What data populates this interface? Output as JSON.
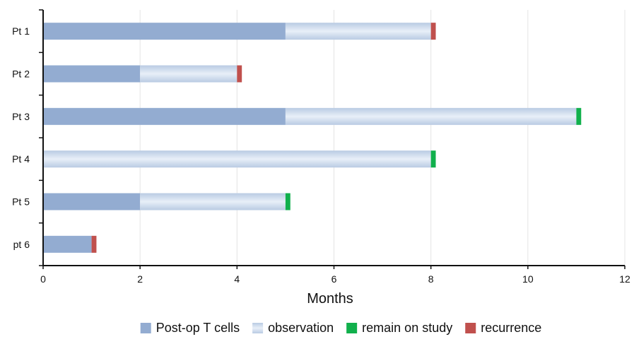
{
  "chart_data": {
    "type": "bar",
    "orientation": "horizontal",
    "stacked": true,
    "categories": [
      "Pt 1",
      "Pt 2",
      "Pt 3",
      "Pt 4",
      "Pt 5",
      "pt 6"
    ],
    "series": [
      {
        "name": "Post-op T cells",
        "color": "#93acd1",
        "values": [
          5,
          2,
          5,
          0,
          2,
          1
        ]
      },
      {
        "name": "observation",
        "color": "#c9d7ea",
        "values": [
          3,
          2,
          6,
          8,
          3,
          0
        ]
      },
      {
        "name": "remain on study",
        "color": "#11b04c",
        "values": [
          0,
          0,
          0.1,
          0.1,
          0.1,
          0
        ]
      },
      {
        "name": "recurrence",
        "color": "#c0504d",
        "values": [
          0.1,
          0.1,
          0,
          0,
          0,
          0.1
        ]
      }
    ],
    "xlabel": "Months",
    "ylabel": "",
    "xlim": [
      0,
      12
    ],
    "xticks": [
      0,
      2,
      4,
      6,
      8,
      10,
      12
    ],
    "grid": "vertical",
    "legend": "bottom"
  }
}
